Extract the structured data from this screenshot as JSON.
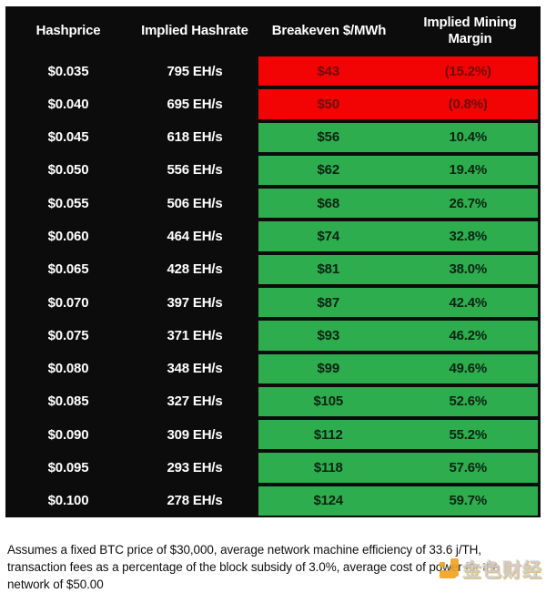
{
  "chart_data": {
    "type": "table",
    "columns": [
      "Hashprice",
      "Implied Hashrate",
      "Breakeven $/MWh",
      "Implied Mining Margin"
    ],
    "rows": [
      {
        "hashprice": "$0.035",
        "hashrate": "795 EH/s",
        "breakeven": "$43",
        "margin": "(15.2%)",
        "status": "negative"
      },
      {
        "hashprice": "$0.040",
        "hashrate": "695 EH/s",
        "breakeven": "$50",
        "margin": "(0.8%)",
        "status": "negative"
      },
      {
        "hashprice": "$0.045",
        "hashrate": "618 EH/s",
        "breakeven": "$56",
        "margin": "10.4%",
        "status": "positive"
      },
      {
        "hashprice": "$0.050",
        "hashrate": "556 EH/s",
        "breakeven": "$62",
        "margin": "19.4%",
        "status": "positive"
      },
      {
        "hashprice": "$0.055",
        "hashrate": "506 EH/s",
        "breakeven": "$68",
        "margin": "26.7%",
        "status": "positive"
      },
      {
        "hashprice": "$0.060",
        "hashrate": "464 EH/s",
        "breakeven": "$74",
        "margin": "32.8%",
        "status": "positive"
      },
      {
        "hashprice": "$0.065",
        "hashrate": "428 EH/s",
        "breakeven": "$81",
        "margin": "38.0%",
        "status": "positive"
      },
      {
        "hashprice": "$0.070",
        "hashrate": "397 EH/s",
        "breakeven": "$87",
        "margin": "42.4%",
        "status": "positive"
      },
      {
        "hashprice": "$0.075",
        "hashrate": "371 EH/s",
        "breakeven": "$93",
        "margin": "46.2%",
        "status": "positive"
      },
      {
        "hashprice": "$0.080",
        "hashrate": "348 EH/s",
        "breakeven": "$99",
        "margin": "49.6%",
        "status": "positive"
      },
      {
        "hashprice": "$0.085",
        "hashrate": "327 EH/s",
        "breakeven": "$105",
        "margin": "52.6%",
        "status": "positive"
      },
      {
        "hashprice": "$0.090",
        "hashrate": "309 EH/s",
        "breakeven": "$112",
        "margin": "55.2%",
        "status": "positive"
      },
      {
        "hashprice": "$0.095",
        "hashrate": "293 EH/s",
        "breakeven": "$118",
        "margin": "57.6%",
        "status": "positive"
      },
      {
        "hashprice": "$0.100",
        "hashrate": "278 EH/s",
        "breakeven": "$124",
        "margin": "59.7%",
        "status": "positive"
      }
    ],
    "footnote": "Assumes a fixed BTC price of $30,000, average network machine efficiency of 33.6 j/TH, transaction fees as a percentage of the block subsidy of 3.0%, average cost of power for the network of $50.00",
    "layout_hints": {
      "table_background": "#0c0c0c",
      "header_text_color": "#ffffff"
    },
    "highlight_colors": {
      "negative": "#f20404",
      "positive": "#2ead4e",
      "negative_text": "#6e0d0d",
      "positive_text": "#0a2413"
    }
  },
  "watermark": {
    "brand": "金色财经",
    "logo_color": "#f0a31f"
  }
}
